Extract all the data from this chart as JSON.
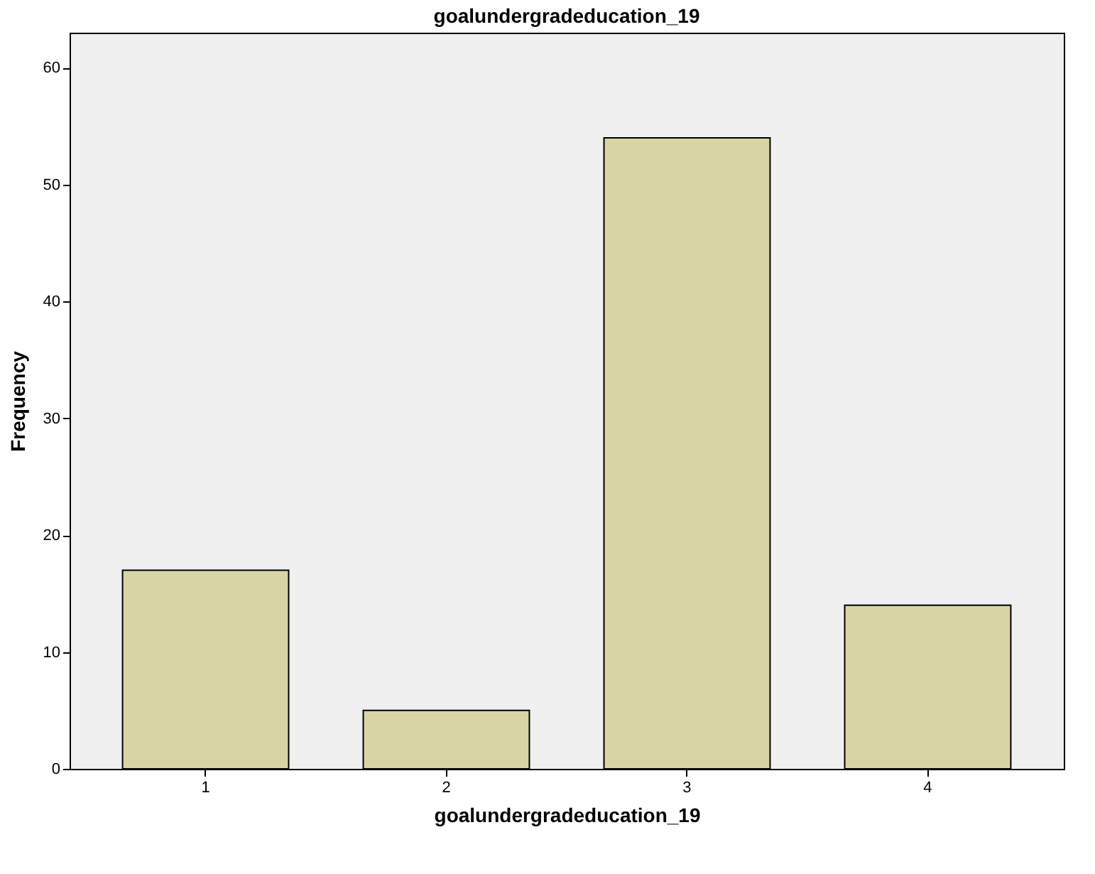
{
  "chart_data": {
    "type": "bar",
    "title": "goalundergradeducation_19",
    "xlabel": "goalundergradeducation_19",
    "ylabel": "Frequency",
    "categories": [
      "1",
      "2",
      "3",
      "4"
    ],
    "values": [
      17,
      5,
      54,
      14
    ],
    "color": "#d9d4a6",
    "ylim": [
      0,
      63
    ],
    "yticks": [
      0,
      10,
      20,
      30,
      40,
      50,
      60
    ],
    "grid": false
  }
}
